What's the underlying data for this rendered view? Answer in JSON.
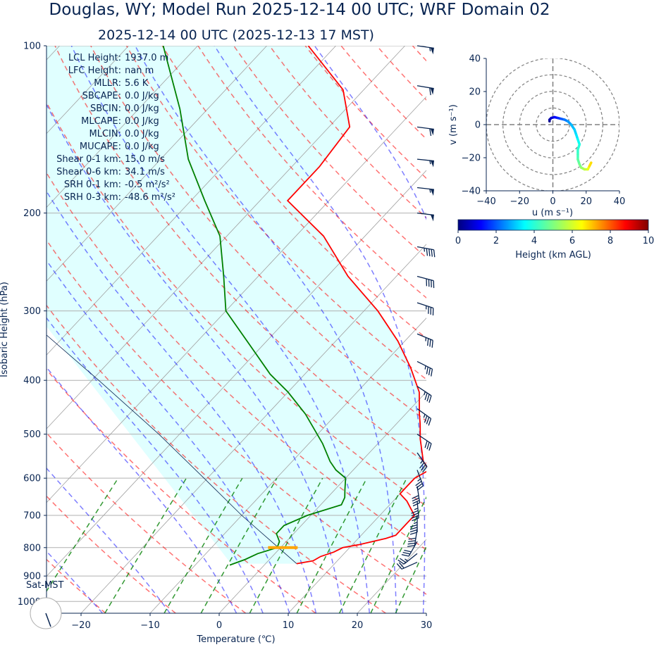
{
  "header": {
    "title": "Douglas, WY; Model Run 2025-12-14 00 UTC; WRF Domain 02",
    "subtitle": "2025-12-14 00 UTC  (2025-12-13 17 MST)"
  },
  "chart_data": [
    {
      "type": "line",
      "chart_kind": "skew-t log-p",
      "xlabel": "Temperature (℃)",
      "ylabel": "Isobaric Height (hPa)",
      "xlim": [
        -25,
        30
      ],
      "ylim": [
        1050,
        100
      ],
      "y_scale": "log",
      "skew": true,
      "grid": true,
      "xticks": [
        -20,
        -10,
        0,
        10,
        20,
        30
      ],
      "yticks": [
        100,
        200,
        300,
        400,
        500,
        600,
        700,
        800,
        900,
        1000
      ],
      "series": [
        {
          "role": "temperature",
          "color": "#ff0000",
          "points": [
            [
              855,
              4.5
            ],
            [
              845,
              6.5
            ],
            [
              830,
              7
            ],
            [
              815,
              8.3
            ],
            [
              800,
              9
            ],
            [
              790,
              11
            ],
            [
              770,
              14
            ],
            [
              760,
              15
            ],
            [
              730,
              15
            ],
            [
              700,
              15
            ],
            [
              660,
              12
            ],
            [
              640,
              10
            ],
            [
              620,
              10
            ],
            [
              600,
              10
            ],
            [
              580,
              11
            ],
            [
              560,
              9
            ],
            [
              510,
              5.5
            ],
            [
              480,
              3.5
            ],
            [
              460,
              2
            ],
            [
              420,
              -1
            ],
            [
              380,
              -5.5
            ],
            [
              340,
              -11
            ],
            [
              300,
              -18
            ],
            [
              260,
              -27
            ],
            [
              220,
              -36
            ],
            [
              190,
              -46
            ],
            [
              165,
              -46
            ],
            [
              140,
              -47
            ],
            [
              120,
              -53
            ],
            [
              100,
              -64
            ]
          ]
        },
        {
          "role": "dewpoint",
          "color": "#008000",
          "points": [
            [
              860,
              -5
            ],
            [
              840,
              -3.5
            ],
            [
              820,
              -2.5
            ],
            [
              800,
              -0.5
            ],
            [
              780,
              -1
            ],
            [
              755,
              -2.5
            ],
            [
              730,
              -2.5
            ],
            [
              700,
              -0.5
            ],
            [
              670,
              3
            ],
            [
              650,
              2.5
            ],
            [
              630,
              1.5
            ],
            [
              600,
              0
            ],
            [
              580,
              -2.5
            ],
            [
              560,
              -4.5
            ],
            [
              520,
              -8
            ],
            [
              460,
              -14.5
            ],
            [
              420,
              -20
            ],
            [
              390,
              -25
            ],
            [
              345,
              -32
            ],
            [
              300,
              -40
            ],
            [
              260,
              -45
            ],
            [
              220,
              -51
            ],
            [
              190,
              -58
            ],
            [
              160,
              -66
            ],
            [
              130,
              -74
            ],
            [
              100,
              -85
            ]
          ]
        },
        {
          "role": "parcel",
          "color": "#082451",
          "points": [
            [
              855,
              4.5
            ],
            [
              700,
              -10
            ],
            [
              600,
              -20.5
            ],
            [
              500,
              -33
            ],
            [
              400,
              -49
            ],
            [
              300,
              -70
            ],
            [
              200,
              -100
            ]
          ]
        }
      ],
      "lcl": {
        "pressure_hpa": 800,
        "color": "#ffa500"
      },
      "shaded_region_color": "#e0ffff",
      "reference_lines": {
        "dry_adiabats_color": "#ff0000",
        "moist_adiabats_color": "#0000ff",
        "mixing_ratio_color": "#008000",
        "isotherms_color": "#808080"
      },
      "wind_barbs": [
        {
          "p": 100,
          "u": -28,
          "v": 4
        },
        {
          "p": 118,
          "u": -30,
          "v": 5
        },
        {
          "p": 140,
          "u": -30,
          "v": 4
        },
        {
          "p": 160,
          "u": -29,
          "v": 3
        },
        {
          "p": 180,
          "u": -27,
          "v": 3
        },
        {
          "p": 200,
          "u": -25,
          "v": 3
        },
        {
          "p": 230,
          "u": -22,
          "v": 4
        },
        {
          "p": 260,
          "u": -19,
          "v": 5
        },
        {
          "p": 290,
          "u": -18,
          "v": 6
        },
        {
          "p": 330,
          "u": -17,
          "v": 7
        },
        {
          "p": 370,
          "u": -16,
          "v": 8
        },
        {
          "p": 410,
          "u": -15,
          "v": 10
        },
        {
          "p": 450,
          "u": -14,
          "v": 10
        },
        {
          "p": 500,
          "u": -12,
          "v": 8
        },
        {
          "p": 540,
          "u": -10,
          "v": 14
        },
        {
          "p": 580,
          "u": -6,
          "v": 16
        },
        {
          "p": 620,
          "u": -3,
          "v": 20
        },
        {
          "p": 660,
          "u": -2,
          "v": 22
        },
        {
          "p": 700,
          "u": 0,
          "v": 22
        },
        {
          "p": 740,
          "u": 3,
          "v": 20
        },
        {
          "p": 780,
          "u": 8,
          "v": 14
        },
        {
          "p": 820,
          "u": 10,
          "v": 8
        },
        {
          "p": 850,
          "u": 9,
          "v": 4
        }
      ]
    },
    {
      "type": "line",
      "chart_kind": "hodograph",
      "xlabel": "u (m s⁻¹)",
      "ylabel": "v (m s⁻¹)",
      "xlim": [
        -40,
        40
      ],
      "ylim": [
        -40,
        40
      ],
      "xticks": [
        -40,
        -20,
        0,
        20,
        40
      ],
      "yticks": [
        -40,
        -20,
        0,
        20,
        40
      ],
      "range_rings": [
        10,
        20,
        30,
        40
      ],
      "points": [
        [
          -2,
          2,
          0.1
        ],
        [
          -2,
          3,
          0.4
        ],
        [
          -1,
          4,
          0.8
        ],
        [
          1,
          4.5,
          1.2
        ],
        [
          3,
          4,
          1.6
        ],
        [
          5,
          3.5,
          2
        ],
        [
          7,
          3,
          2.3
        ],
        [
          9,
          2,
          2.6
        ],
        [
          11,
          0,
          2.9
        ],
        [
          13,
          -3,
          3.1
        ],
        [
          14,
          -6,
          3.3
        ],
        [
          15,
          -9,
          3.6
        ],
        [
          16,
          -12,
          3.9
        ],
        [
          15,
          -15,
          4.1
        ],
        [
          15,
          -18,
          4.3
        ],
        [
          15,
          -21,
          4.6
        ],
        [
          16,
          -24,
          4.9
        ],
        [
          17,
          -26,
          5.3
        ],
        [
          19,
          -27,
          5.8
        ],
        [
          21,
          -27,
          6.3
        ],
        [
          22,
          -25,
          6.8
        ],
        [
          23,
          -23,
          7.3
        ]
      ],
      "colorbar": {
        "label": "Height (km AGL)",
        "range": [
          0,
          10
        ],
        "ticks": [
          0,
          2,
          4,
          6,
          8,
          10
        ],
        "colormap": "jet"
      }
    }
  ],
  "stats": [
    {
      "label": "LCL Height:",
      "value": "1937.0 m"
    },
    {
      "label": "LFC Height:",
      "value": "nan m"
    },
    {
      "label": "MLLR:",
      "value": "5.6 K"
    },
    {
      "label": "SBCAPE:",
      "value": "0.0 J/kg"
    },
    {
      "label": "SBCIN:",
      "value": "0.0 J/kg"
    },
    {
      "label": "MLCAPE:",
      "value": "0.0 J/kg"
    },
    {
      "label": "MLCIN:",
      "value": "0.0 J/kg"
    },
    {
      "label": "MUCAPE:",
      "value": "0.0 J/kg"
    },
    {
      "label": "Shear 0-1 km:",
      "value": "15.0 m/s"
    },
    {
      "label": "Shear 0-6 km:",
      "value": "34.1 m/s"
    },
    {
      "label": "SRH 0-1 km:",
      "value": "-0.5 m²/s²"
    },
    {
      "label": "SRH 0-3 km:",
      "value": "-48.6 m²/s²"
    }
  ],
  "inset": {
    "label": "Sat-MST"
  }
}
